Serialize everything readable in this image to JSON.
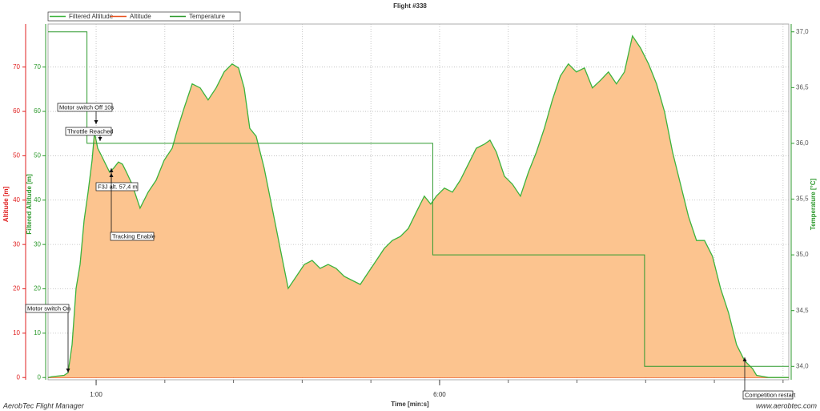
{
  "chart_data": {
    "type": "line",
    "title": "Flight #338",
    "xlabel": "Time [min:s]",
    "ylabel": "Filtered Altitude [m]",
    "ylabel_left": "Altitude [m]",
    "y2label": "Temperature [°C]",
    "footer_left": "AerobTec Flight Manager",
    "footer_right": "www.aerobtec.com",
    "xlim": [
      18,
      665
    ],
    "xticks": [
      {
        "value": 60,
        "label": "1:00"
      },
      {
        "value": 360,
        "label": "6:00"
      }
    ],
    "xgrid_ticks": [
      60,
      120,
      180,
      240,
      300,
      360,
      420,
      480,
      540,
      600,
      660
    ],
    "ylim": [
      -0.5,
      79.7
    ],
    "yticks": [
      0,
      10,
      20,
      30,
      40,
      50,
      60,
      70
    ],
    "y2lim": [
      33.88,
      37.07
    ],
    "y2ticks": [
      {
        "value": 34,
        "label": "34,0"
      },
      {
        "value": 34.5,
        "label": "34,5"
      },
      {
        "value": 35,
        "label": "35,0"
      },
      {
        "value": 35.5,
        "label": "35,5"
      },
      {
        "value": 36,
        "label": "36,0"
      },
      {
        "value": 36.5,
        "label": "36,5"
      },
      {
        "value": 37,
        "label": "37,0"
      }
    ],
    "grid": true,
    "fill_color": "#fcc48f",
    "series": [
      {
        "name": "Filtered Altitude",
        "color": "#3cb33c",
        "x": [
          18,
          21.5,
          32,
          35.5,
          39,
          42.5,
          46,
          49.5,
          53,
          56.5,
          58.6,
          61.4,
          64.9,
          68.3,
          71.8,
          75.3,
          79.5,
          83,
          86.5,
          91.4,
          98.4,
          105.4,
          112.4,
          119.4,
          126.4,
          131.3,
          136.9,
          143.9,
          150.9,
          157.8,
          164.8,
          171.8,
          178.8,
          184.4,
          189.3,
          194.2,
          199.8,
          206.8,
          213.8,
          220.8,
          227.8,
          234.8,
          241.8,
          248.7,
          255.7,
          262.7,
          269.7,
          276.7,
          283.7,
          290.7,
          297.7,
          304.7,
          311.7,
          318.7,
          325.7,
          332.7,
          339.7,
          346.7,
          352.3,
          357.2,
          364.2,
          371.2,
          378.1,
          385.1,
          392.1,
          399.1,
          404,
          409.6,
          416.6,
          423.6,
          430.6,
          437.6,
          444.5,
          451.5,
          458.5,
          465.5,
          472.5,
          479.5,
          486.5,
          493.5,
          500.5,
          507.5,
          514.5,
          521.5,
          528.5,
          535.5,
          542.5,
          549.5,
          556.5,
          563.5,
          570.4,
          577.4,
          584.4,
          591.4,
          598.4,
          605.4,
          612.4,
          619.4,
          626.4,
          633.4,
          636.9,
          647.4,
          664.9
        ],
        "values": [
          0,
          0.2,
          0.5,
          1.1,
          7.4,
          20.1,
          25.5,
          35.4,
          41.8,
          49.0,
          55.3,
          51.7,
          49.9,
          48.1,
          46.3,
          47.2,
          48.6,
          48.1,
          46.3,
          43.6,
          38.2,
          41.8,
          44.5,
          49.0,
          51.7,
          56.2,
          60.8,
          66.2,
          65.3,
          62.6,
          65.3,
          68.9,
          70.7,
          69.8,
          65.3,
          56.2,
          54.4,
          47.2,
          38.2,
          29.1,
          20.1,
          22.8,
          25.5,
          26.4,
          24.6,
          25.5,
          24.6,
          22.8,
          21.9,
          21.0,
          23.7,
          26.4,
          29.1,
          30.9,
          31.8,
          33.6,
          37.3,
          40.9,
          39.1,
          40.9,
          42.7,
          41.8,
          44.5,
          48.1,
          51.7,
          52.6,
          53.5,
          50.8,
          45.4,
          43.6,
          40.9,
          46.3,
          50.8,
          56.2,
          62.6,
          68.0,
          70.7,
          68.9,
          69.8,
          65.3,
          67.0,
          68.9,
          66.2,
          68.9,
          77.0,
          74.3,
          70.7,
          66.2,
          59.9,
          50.8,
          43.6,
          36.3,
          30.9,
          30.9,
          27.3,
          20.1,
          14.6,
          7.4,
          3.8,
          2.0,
          0.5,
          0,
          0
        ]
      },
      {
        "name": "Altitude",
        "color": "#e8501e",
        "x": [
          18,
          665
        ],
        "values": [
          0,
          0
        ]
      },
      {
        "name": "Temperature",
        "color": "#2e9a2e",
        "axis": "y2",
        "x": [
          18,
          52,
          52,
          354,
          354,
          539,
          539,
          665
        ],
        "values": [
          37,
          37,
          36,
          36,
          35,
          35,
          34,
          34
        ]
      }
    ],
    "annotations": [
      "Motor switch On",
      "Motor switch Off 10s",
      "Throttle Reached",
      "F3J alt. 57,4 m",
      "Tracking Enable",
      "Competition restart"
    ]
  }
}
